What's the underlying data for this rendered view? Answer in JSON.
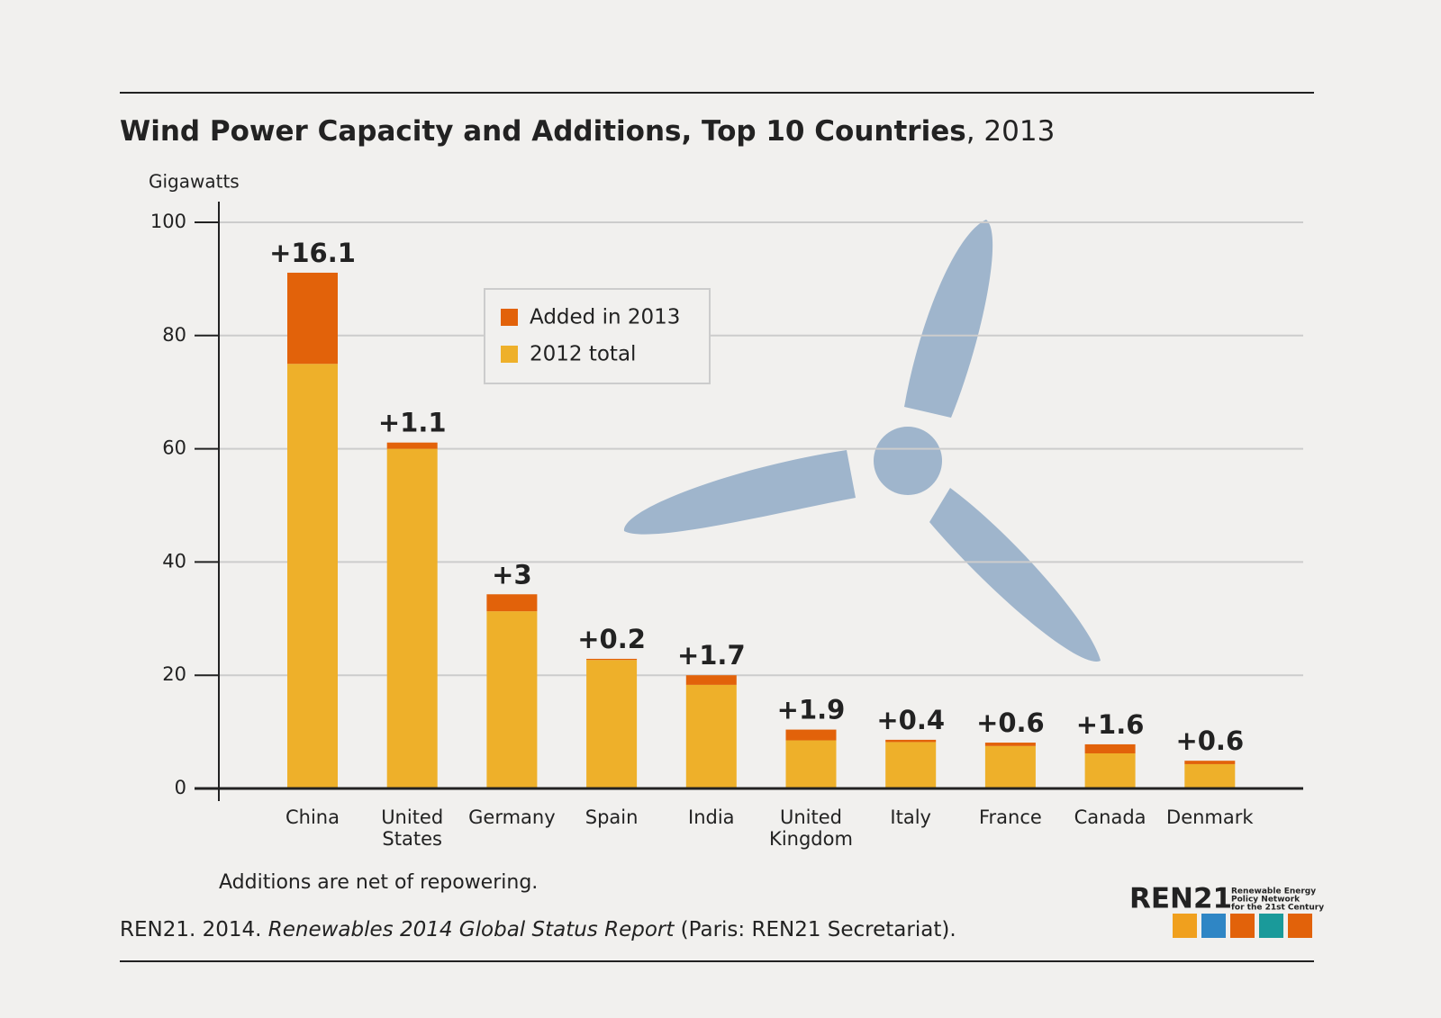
{
  "chart_data": {
    "type": "stacked_bar",
    "title": "Wind Power Capacity and Additions, Top 10 Countries",
    "title_suffix": ", 2013",
    "y_label": "Gigawatts",
    "categories": [
      "China",
      "United States",
      "Germany",
      "Spain",
      "India",
      "United Kingdom",
      "Italy",
      "France",
      "Canada",
      "Denmark"
    ],
    "series": [
      {
        "name": "2012 total",
        "color": "#eeb02a",
        "values": [
          75,
          60,
          31.3,
          22.7,
          18.3,
          8.5,
          8.2,
          7.5,
          6.2,
          4.3
        ]
      },
      {
        "name": "Added in 2013",
        "color": "#e2620a",
        "values": [
          16.1,
          1.1,
          3,
          0.2,
          1.7,
          1.9,
          0.4,
          0.6,
          1.6,
          0.6
        ],
        "value_labels": [
          "+16.1",
          "+1.1",
          "+3",
          "+0.2",
          "+1.7",
          "+1.9",
          "+0.4",
          "+0.6",
          "+1.6",
          "+0.6"
        ]
      }
    ],
    "ylim": [
      0,
      100
    ],
    "yticks": [
      0,
      20,
      40,
      60,
      80,
      100
    ],
    "grid": true,
    "note": "Additions are net of repowering.",
    "source": [
      "REN21. 2014. ",
      "Renewables 2014 Global Status Report",
      " (Paris: REN21 Secretariat)."
    ],
    "logo_name": "REN21",
    "logo_tagline": [
      "Renewable Energy",
      "Policy Network",
      "for the 21st Century"
    ]
  }
}
